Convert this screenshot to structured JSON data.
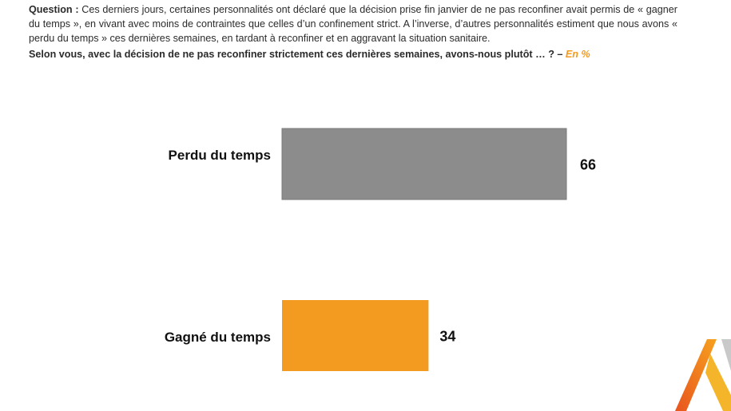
{
  "question": {
    "lead": "Question :",
    "text": "Ces derniers jours, certaines personnalités ont déclaré que la décision prise fin janvier de ne pas reconfiner avait permis de « gagner du temps », en vivant avec moins de contraintes que celles d’un confinement strict. A l’inverse, d’autres personnalités estiment que nous avons « perdu du temps » ces dernières semaines, en tardant à reconfiner et en aggravant la situation sanitaire.",
    "prompt": "Selon vous, avec la décision de ne pas reconfiner strictement ces dernières semaines, avons-nous plutôt … ? –",
    "unit": "En %"
  },
  "chart_data": {
    "type": "bar",
    "orientation": "horizontal",
    "categories": [
      "Perdu du temps",
      "Gagné du temps"
    ],
    "values": [
      66,
      34
    ],
    "colors": [
      "#8c8c8c",
      "#f39a21"
    ],
    "xlim": [
      0,
      100
    ],
    "grid": false,
    "legend": "none"
  },
  "colors": {
    "accent": "#f39a21",
    "bar_grey": "#8c8c8c"
  }
}
